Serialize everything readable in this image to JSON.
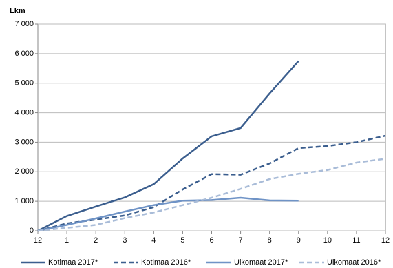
{
  "chart_data": {
    "type": "line",
    "ylabel": "Lkm",
    "categories": [
      "12",
      "1",
      "2",
      "3",
      "4",
      "5",
      "6",
      "7",
      "8",
      "9",
      "10",
      "11",
      "12"
    ],
    "ylim": [
      0,
      7000
    ],
    "yticks": [
      0,
      {
        "value": 1000,
        "label": "1 000"
      },
      {
        "value": 2000,
        "label": "2 000"
      },
      {
        "value": 3000,
        "label": "3 000"
      },
      {
        "value": 4000,
        "label": "4 000"
      },
      {
        "value": 5000,
        "label": "5 000"
      },
      {
        "value": 6000,
        "label": "6 000"
      },
      {
        "value": 7000,
        "label": "7 000"
      }
    ],
    "grid": true,
    "legend": "bottom",
    "series": [
      {
        "name": "Kotimaa 2017*",
        "color": "#3b5e8e",
        "dash": false,
        "values": [
          0,
          500,
          820,
          1130,
          1580,
          2450,
          3200,
          3480,
          4650,
          5750,
          null,
          null,
          null
        ]
      },
      {
        "name": "Kotimaa 2016*",
        "color": "#3b5e8e",
        "dash": true,
        "values": [
          0,
          250,
          380,
          520,
          800,
          1400,
          1920,
          1900,
          2280,
          2800,
          2870,
          3000,
          3220
        ]
      },
      {
        "name": "Ulkomaat 2017*",
        "color": "#6f93c6",
        "dash": false,
        "values": [
          0,
          200,
          420,
          650,
          870,
          1020,
          1040,
          1120,
          1030,
          1020,
          null,
          null,
          null
        ]
      },
      {
        "name": "Ulkomaat 2016*",
        "color": "#a9bcd8",
        "dash": true,
        "values": [
          0,
          100,
          200,
          430,
          620,
          870,
          1120,
          1420,
          1750,
          1930,
          2060,
          2310,
          2440
        ]
      }
    ]
  }
}
